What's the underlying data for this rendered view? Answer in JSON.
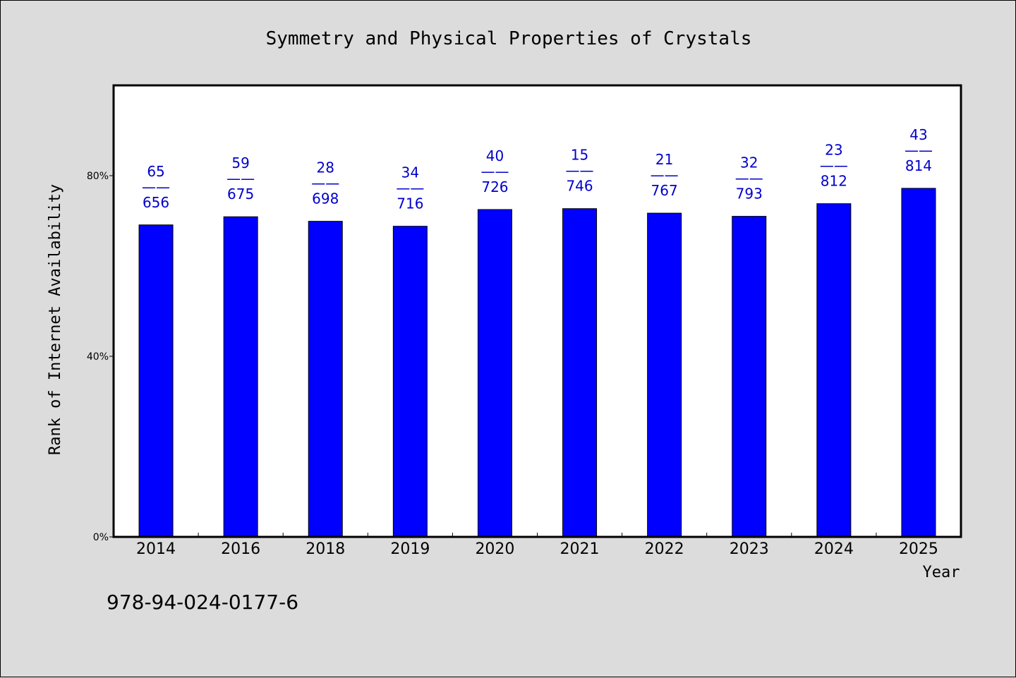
{
  "chart_data": {
    "type": "bar",
    "title": "Symmetry and Physical Properties of Crystals",
    "xlabel": "Year",
    "ylabel": "Rank of Internet Availability",
    "categories": [
      "2014",
      "2016",
      "2018",
      "2019",
      "2020",
      "2021",
      "2022",
      "2023",
      "2024",
      "2025"
    ],
    "values": [
      69.1,
      70.9,
      69.9,
      68.8,
      72.5,
      72.7,
      71.7,
      71.0,
      73.8,
      77.2
    ],
    "y_unit": "%",
    "ylim": [
      0,
      100
    ],
    "yticks": [
      0,
      40,
      80
    ],
    "ytick_labels": [
      "0%",
      "40%",
      "80%"
    ],
    "data_labels": [
      {
        "top": "65",
        "sep": "——",
        "bottom": "656"
      },
      {
        "top": "59",
        "sep": "——",
        "bottom": "675"
      },
      {
        "top": "28",
        "sep": "——",
        "bottom": "698"
      },
      {
        "top": "34",
        "sep": "——",
        "bottom": "716"
      },
      {
        "top": "40",
        "sep": "——",
        "bottom": "726"
      },
      {
        "top": "15",
        "sep": "——",
        "bottom": "746"
      },
      {
        "top": "21",
        "sep": "——",
        "bottom": "767"
      },
      {
        "top": "32",
        "sep": "——",
        "bottom": "793"
      },
      {
        "top": "23",
        "sep": "——",
        "bottom": "812"
      },
      {
        "top": "43",
        "sep": "——",
        "bottom": "814"
      }
    ],
    "grid": false,
    "colors": {
      "bar": "#0000ff",
      "bar_edge": "#000000",
      "label": "#0000cc",
      "plot_bg": "#ffffff",
      "page_bg": "#dcdcdc"
    }
  },
  "footer": {
    "isbn": "978-94-024-0177-6"
  }
}
